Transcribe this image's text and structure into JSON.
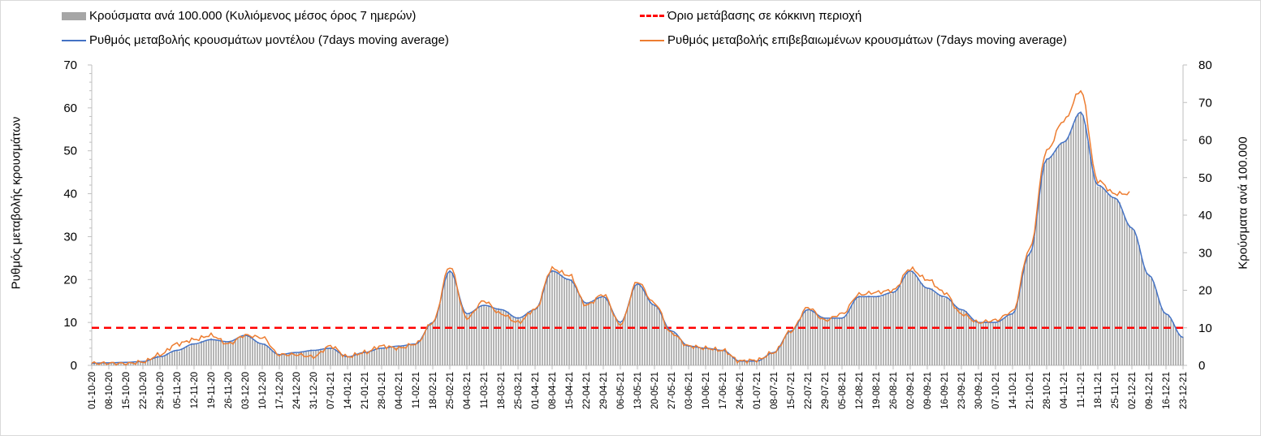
{
  "chart_data": {
    "type": "bar+line",
    "legend": {
      "bars": "Κρούσματα ανά 100.000 (Κυλιόμενος μέσος όρος 7 ημερών)",
      "threshold": "Όριο μετάβασης σε κόκκινη περιοχή",
      "model": "Ρυθμός μεταβολής κρουσμάτων μοντέλου (7days moving average)",
      "confirmed": "Ρυθμός μεταβολής επιβεβαιωμένων κρουσμάτων (7days moving average)"
    },
    "ylabel_left": "Ρυθμός μεταβολής κρουσμάτων",
    "ylabel_right": "Κρούσματα ανά 100.000",
    "ylim_left": [
      0,
      70
    ],
    "yticks_left": [
      0,
      10,
      20,
      30,
      40,
      50,
      60,
      70
    ],
    "ylim_right": [
      0,
      80
    ],
    "yticks_right": [
      0,
      10,
      20,
      30,
      40,
      50,
      60,
      70,
      80
    ],
    "threshold_value_right": 10,
    "x_dates": [
      "01-10-20",
      "08-10-20",
      "15-10-20",
      "22-10-20",
      "29-10-20",
      "05-11-20",
      "12-11-20",
      "19-11-20",
      "26-11-20",
      "03-12-20",
      "10-12-20",
      "17-12-20",
      "24-12-20",
      "31-12-20",
      "07-01-21",
      "14-01-21",
      "21-01-21",
      "28-01-21",
      "04-02-21",
      "11-02-21",
      "18-02-21",
      "25-02-21",
      "04-03-21",
      "11-03-21",
      "18-03-21",
      "25-03-21",
      "01-04-21",
      "08-04-21",
      "15-04-21",
      "22-04-21",
      "29-04-21",
      "06-05-21",
      "13-05-21",
      "20-05-21",
      "27-05-21",
      "03-06-21",
      "10-06-21",
      "17-06-21",
      "24-06-21",
      "01-07-21",
      "08-07-21",
      "15-07-21",
      "22-07-21",
      "29-07-21",
      "05-08-21",
      "12-08-21",
      "19-08-21",
      "26-08-21",
      "02-09-21",
      "09-09-21",
      "16-09-21",
      "23-09-21",
      "30-09-21",
      "07-10-21",
      "14-10-21",
      "21-10-21",
      "28-10-21",
      "04-11-21",
      "11-11-21",
      "18-11-21",
      "25-11-21",
      "02-12-21",
      "09-12-21",
      "16-12-21",
      "23-12-21"
    ],
    "model_weekly": [
      0.5,
      0.6,
      0.7,
      0.9,
      2.0,
      3.5,
      5.0,
      6.0,
      5.5,
      7.0,
      5.0,
      2.5,
      3.0,
      3.5,
      4.0,
      2.0,
      3.0,
      4.0,
      4.5,
      5.0,
      10.0,
      22.0,
      12.0,
      14.0,
      13.0,
      11.0,
      13.0,
      22.0,
      20.0,
      14.5,
      16.0,
      10.0,
      19.0,
      14.0,
      8.0,
      4.5,
      4.0,
      3.5,
      1.0,
      1.0,
      3.0,
      8.0,
      13.0,
      11.0,
      11.0,
      16.0,
      16.0,
      17.0,
      22.0,
      18.0,
      16.0,
      13.0,
      10.0,
      10.0,
      12.0,
      26.0,
      48.0,
      52.0,
      59.0,
      42.0,
      39.0,
      32.0,
      21.0,
      12.0,
      6.5
    ],
    "confirmed_weekly": [
      0.5,
      0.5,
      0.4,
      0.8,
      2.5,
      5.0,
      6.0,
      7.0,
      5.0,
      7.0,
      6.5,
      2.5,
      2.5,
      2.0,
      4.5,
      2.0,
      3.0,
      4.5,
      4.0,
      5.0,
      10.0,
      23.0,
      11.0,
      15.0,
      12.0,
      10.0,
      13.0,
      22.5,
      21.0,
      14.0,
      16.5,
      9.5,
      19.5,
      14.5,
      7.5,
      4.5,
      4.0,
      3.5,
      1.0,
      1.2,
      3.0,
      8.0,
      13.5,
      10.5,
      12.0,
      16.5,
      17.0,
      17.5,
      22.5,
      20.0,
      17.0,
      12.0,
      10.0,
      10.5,
      12.5,
      27.0,
      50.0,
      57.0,
      64.0,
      43.0,
      40.0,
      null,
      null,
      null,
      null
    ],
    "cases_weekly": [
      0.6,
      0.7,
      0.8,
      1.0,
      2.3,
      4.0,
      5.7,
      6.9,
      6.3,
      8.0,
      5.7,
      2.9,
      3.4,
      4.0,
      4.6,
      2.3,
      3.4,
      4.6,
      5.1,
      5.7,
      11.4,
      25.1,
      13.7,
      16.0,
      14.9,
      12.6,
      14.9,
      25.1,
      22.9,
      16.6,
      18.3,
      11.4,
      21.7,
      16.0,
      9.1,
      5.1,
      4.6,
      4.0,
      1.1,
      1.1,
      3.4,
      9.1,
      14.9,
      12.6,
      12.6,
      18.3,
      18.3,
      19.4,
      25.1,
      20.6,
      18.3,
      14.9,
      11.4,
      11.4,
      13.7,
      29.7,
      54.9,
      59.4,
      67.4,
      48.0,
      44.6,
      36.6,
      24.0,
      13.7,
      7.4
    ],
    "colors": {
      "bars": "#a6a6a6",
      "model": "#4472c4",
      "confirmed": "#ed7d31",
      "threshold": "#ff0000"
    }
  }
}
